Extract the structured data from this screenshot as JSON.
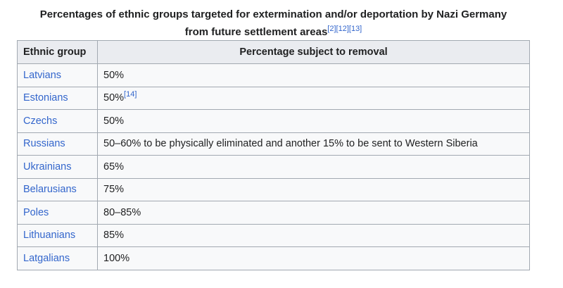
{
  "caption": {
    "line1": "Percentages of ethnic groups targeted for extermination and/or deportation by Nazi Germany",
    "line2": "from future settlement areas",
    "refs": [
      "[2]",
      "[12]",
      "[13]"
    ]
  },
  "table": {
    "headers": [
      "Ethnic group",
      "Percentage subject to removal"
    ],
    "rows": [
      {
        "group": "Latvians",
        "value": "50%",
        "ref": ""
      },
      {
        "group": "Estonians",
        "value": "50%",
        "ref": "[14]"
      },
      {
        "group": "Czechs",
        "value": "50%",
        "ref": ""
      },
      {
        "group": "Russians",
        "value": "50–60% to be physically eliminated and another 15% to be sent to Western Siberia",
        "ref": ""
      },
      {
        "group": "Ukrainians",
        "value": "65%",
        "ref": ""
      },
      {
        "group": "Belarusians",
        "value": "75%",
        "ref": ""
      },
      {
        "group": "Poles",
        "value": "80–85%",
        "ref": ""
      },
      {
        "group": "Lithuanians",
        "value": "85%",
        "ref": ""
      },
      {
        "group": "Latgalians",
        "value": "100%",
        "ref": ""
      }
    ]
  },
  "colors": {
    "link": "#3366cc",
    "header_bg": "#eaecf0",
    "cell_bg": "#f8f9fa",
    "border": "#a2a9b1"
  }
}
